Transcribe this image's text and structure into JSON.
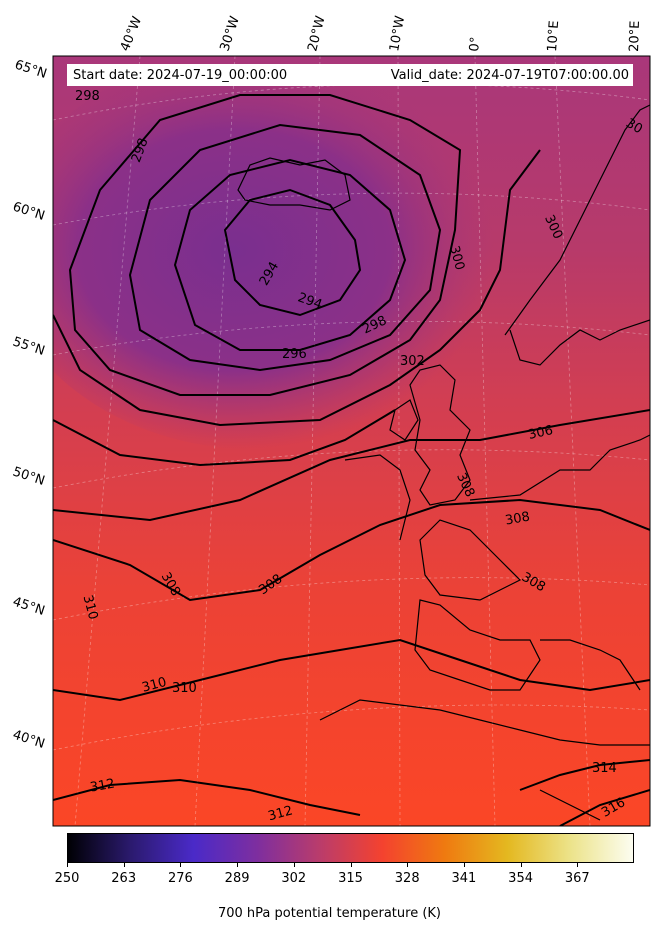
{
  "header": {
    "start_date": "Start date: 2024-07-19_00:00:00",
    "valid_date": "Valid_date: 2024-07-19T07:00:00.00"
  },
  "longitude_labels": [
    "40°W",
    "30°W",
    "20°W",
    "10°W",
    "0°",
    "10°E",
    "20°E"
  ],
  "latitude_labels": [
    "65°N",
    "60°N",
    "55°N",
    "50°N",
    "45°N",
    "40°N"
  ],
  "contour_labels": [
    "298",
    "298",
    "294",
    "294",
    "296",
    "298",
    "300",
    "300",
    "302",
    "306",
    "308",
    "308",
    "308",
    "308",
    "310",
    "310",
    "310",
    "312",
    "312",
    "314",
    "316",
    "30"
  ],
  "colorbar": {
    "title": "700 hPa potential temperature (K)",
    "ticks": [
      "250",
      "263",
      "276",
      "289",
      "302",
      "315",
      "328",
      "341",
      "354",
      "367"
    ],
    "colormap": [
      "#000004",
      "#2b1a6e",
      "#4a2ac8",
      "#7d2ea0",
      "#b93c6c",
      "#f4422f",
      "#ef7a10",
      "#e4b820",
      "#ece38a",
      "#fcfdf0"
    ]
  },
  "field_colors": {
    "cold_core": "#7a2f8f",
    "north": "#a23778",
    "mid": "#d83e52",
    "south": "#f84528"
  }
}
